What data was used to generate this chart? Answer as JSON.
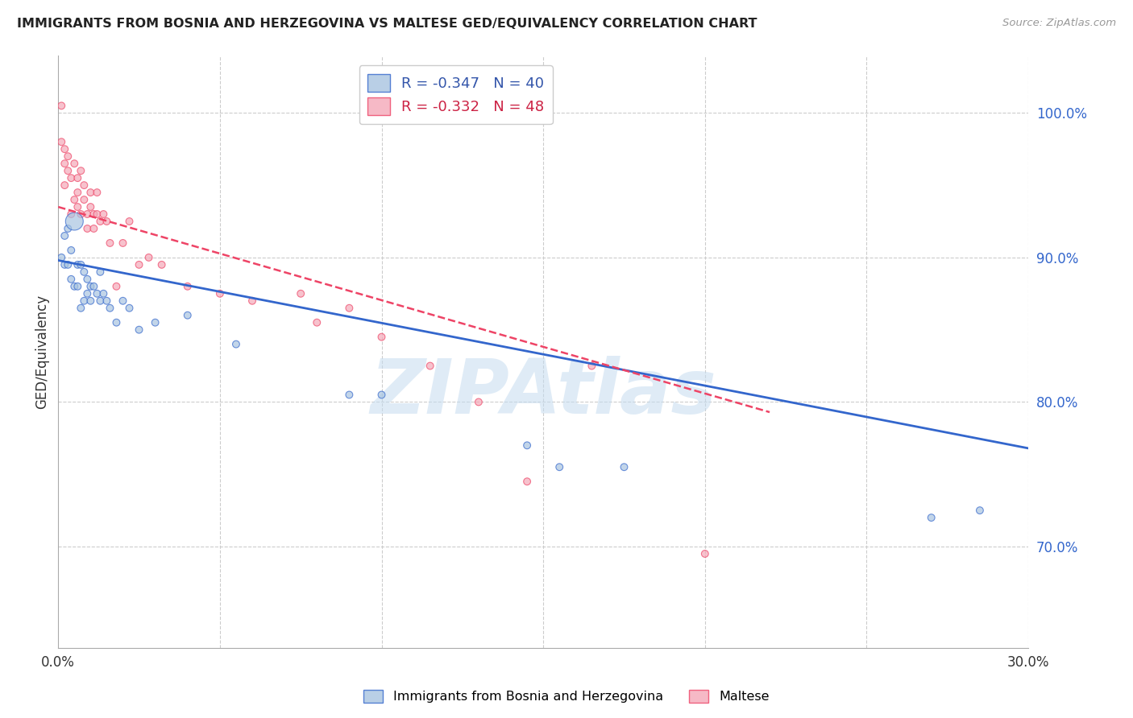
{
  "title": "IMMIGRANTS FROM BOSNIA AND HERZEGOVINA VS MALTESE GED/EQUIVALENCY CORRELATION CHART",
  "source": "Source: ZipAtlas.com",
  "ylabel": "GED/Equivalency",
  "xlim": [
    0.0,
    0.3
  ],
  "ylim": [
    0.63,
    1.04
  ],
  "xticks": [
    0.0,
    0.05,
    0.1,
    0.15,
    0.2,
    0.25,
    0.3
  ],
  "yticks_right": [
    0.7,
    0.8,
    0.9,
    1.0
  ],
  "legend_blue_r": "R = -0.347",
  "legend_blue_n": "N = 40",
  "legend_pink_r": "R = -0.332",
  "legend_pink_n": "N = 48",
  "blue_color": "#A8C4E0",
  "pink_color": "#F4A8B8",
  "blue_line_color": "#3366CC",
  "pink_line_color": "#EE4466",
  "watermark": "ZIPAtlas",
  "watermark_color": "#C5DCF0",
  "label_blue": "Immigrants from Bosnia and Herzegovina",
  "label_pink": "Maltese",
  "blue_line_x0": 0.0,
  "blue_line_y0": 0.898,
  "blue_line_x1": 0.3,
  "blue_line_y1": 0.768,
  "pink_line_x0": 0.0,
  "pink_line_y0": 0.935,
  "pink_line_x1": 0.22,
  "pink_line_y1": 0.793,
  "blue_x": [
    0.001,
    0.002,
    0.002,
    0.003,
    0.003,
    0.004,
    0.004,
    0.005,
    0.005,
    0.006,
    0.006,
    0.007,
    0.007,
    0.008,
    0.008,
    0.009,
    0.009,
    0.01,
    0.01,
    0.011,
    0.012,
    0.013,
    0.013,
    0.014,
    0.015,
    0.016,
    0.018,
    0.02,
    0.022,
    0.025,
    0.03,
    0.04,
    0.055,
    0.09,
    0.1,
    0.145,
    0.155,
    0.175,
    0.27,
    0.285
  ],
  "blue_y": [
    0.9,
    0.915,
    0.895,
    0.92,
    0.895,
    0.905,
    0.885,
    0.925,
    0.88,
    0.895,
    0.88,
    0.895,
    0.865,
    0.89,
    0.87,
    0.885,
    0.875,
    0.88,
    0.87,
    0.88,
    0.875,
    0.87,
    0.89,
    0.875,
    0.87,
    0.865,
    0.855,
    0.87,
    0.865,
    0.85,
    0.855,
    0.86,
    0.84,
    0.805,
    0.805,
    0.77,
    0.755,
    0.755,
    0.72,
    0.725
  ],
  "blue_size": [
    40,
    40,
    40,
    40,
    40,
    40,
    40,
    250,
    40,
    40,
    40,
    40,
    40,
    40,
    40,
    40,
    40,
    40,
    40,
    40,
    40,
    40,
    40,
    40,
    40,
    40,
    40,
    40,
    40,
    40,
    40,
    40,
    40,
    40,
    40,
    40,
    40,
    40,
    40,
    40
  ],
  "pink_x": [
    0.001,
    0.001,
    0.002,
    0.002,
    0.002,
    0.003,
    0.003,
    0.004,
    0.004,
    0.005,
    0.005,
    0.006,
    0.006,
    0.006,
    0.007,
    0.007,
    0.008,
    0.008,
    0.009,
    0.009,
    0.01,
    0.01,
    0.011,
    0.011,
    0.012,
    0.012,
    0.013,
    0.014,
    0.015,
    0.016,
    0.018,
    0.02,
    0.022,
    0.025,
    0.028,
    0.032,
    0.04,
    0.05,
    0.06,
    0.075,
    0.08,
    0.09,
    0.1,
    0.115,
    0.13,
    0.145,
    0.165,
    0.2
  ],
  "pink_y": [
    1.005,
    0.98,
    0.975,
    0.965,
    0.95,
    0.97,
    0.96,
    0.955,
    0.93,
    0.94,
    0.965,
    0.945,
    0.935,
    0.955,
    0.96,
    0.93,
    0.94,
    0.95,
    0.93,
    0.92,
    0.935,
    0.945,
    0.93,
    0.92,
    0.945,
    0.93,
    0.925,
    0.93,
    0.925,
    0.91,
    0.88,
    0.91,
    0.925,
    0.895,
    0.9,
    0.895,
    0.88,
    0.875,
    0.87,
    0.875,
    0.855,
    0.865,
    0.845,
    0.825,
    0.8,
    0.745,
    0.825,
    0.695
  ],
  "pink_size": [
    40,
    40,
    40,
    40,
    40,
    40,
    40,
    40,
    40,
    40,
    40,
    40,
    40,
    40,
    40,
    40,
    40,
    40,
    40,
    40,
    40,
    40,
    40,
    40,
    40,
    40,
    40,
    40,
    40,
    40,
    40,
    40,
    40,
    40,
    40,
    40,
    40,
    40,
    40,
    40,
    40,
    40,
    40,
    40,
    40,
    40,
    40,
    40
  ],
  "background_color": "#FFFFFF",
  "grid_color": "#CCCCCC"
}
